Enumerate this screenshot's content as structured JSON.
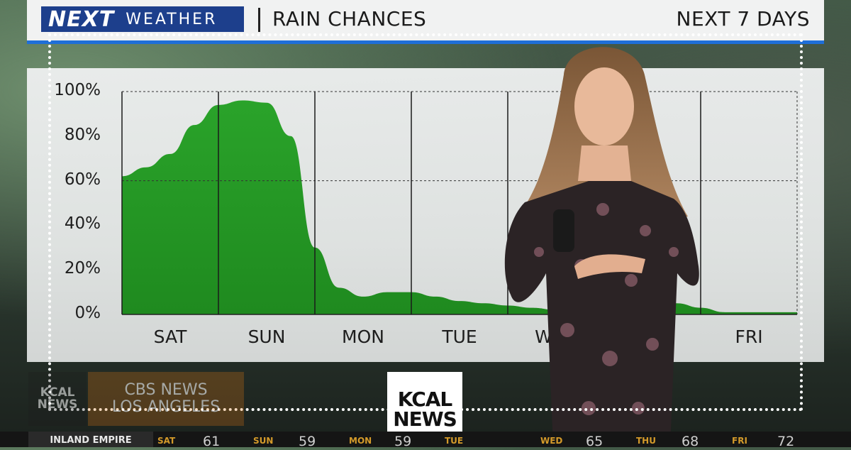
{
  "header": {
    "logo_next": "NEXT",
    "logo_weather": "WEATHER",
    "title": "RAIN CHANCES",
    "right_label": "NEXT 7 DAYS"
  },
  "colors": {
    "fill": "#2aa32a",
    "fill_dark": "#1f8a1f",
    "header_blue": "#1d3f8c",
    "accent": "#1f6fd8"
  },
  "chart_data": {
    "type": "area",
    "title": "RAIN CHANCES",
    "categories": [
      "SAT",
      "SUN",
      "MON",
      "TUE",
      "WED",
      "THU",
      "FRI"
    ],
    "y_ticks": [
      "100%",
      "80%",
      "60%",
      "40%",
      "20%",
      "0%"
    ],
    "ylim": [
      0,
      100
    ],
    "grid": true,
    "x": [
      0,
      0.25,
      0.5,
      0.75,
      1.0,
      1.25,
      1.5,
      1.75,
      2.0,
      2.25,
      2.5,
      2.75,
      3.0,
      3.25,
      3.5,
      3.75,
      4.0,
      4.25,
      4.5,
      4.75,
      5.0,
      5.25,
      5.5,
      5.75,
      6.0,
      6.25,
      6.5,
      6.75,
      7.0
    ],
    "values": [
      62,
      66,
      72,
      85,
      94,
      96,
      95,
      80,
      30,
      12,
      8,
      10,
      10,
      8,
      6,
      5,
      4,
      3,
      2,
      2,
      2,
      3,
      5,
      5,
      3,
      1,
      1,
      1,
      1
    ]
  },
  "branding": {
    "kcal_line1": "KCAL",
    "kcal_line2": "NEWS",
    "cbs_line1": "CBS NEWS",
    "cbs_line2": "LOS ANGELES"
  },
  "ticker": {
    "region": "INLAND EMPIRE",
    "days": [
      {
        "day": "SAT",
        "temp": "61"
      },
      {
        "day": "SUN",
        "temp": "59"
      },
      {
        "day": "MON",
        "temp": "59"
      },
      {
        "day": "TUE",
        "temp": ""
      },
      {
        "day": "WED",
        "temp": "65"
      },
      {
        "day": "THU",
        "temp": "68"
      },
      {
        "day": "FRI",
        "temp": "72"
      }
    ]
  }
}
